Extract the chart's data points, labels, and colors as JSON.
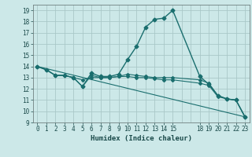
{
  "xlabel": "Humidex (Indice chaleur)",
  "ylabel": "",
  "xlim": [
    -0.5,
    23.5
  ],
  "ylim": [
    9,
    19.5
  ],
  "xticks": [
    0,
    1,
    2,
    3,
    4,
    5,
    6,
    7,
    8,
    9,
    10,
    11,
    12,
    13,
    14,
    15,
    18,
    19,
    20,
    21,
    22,
    23
  ],
  "yticks": [
    9,
    10,
    11,
    12,
    13,
    14,
    15,
    16,
    17,
    18,
    19
  ],
  "bg_color": "#cce8e8",
  "grid_color": "#aac8c8",
  "line_color": "#1a6e6e",
  "lines": [
    {
      "x": [
        0,
        1,
        2,
        3,
        4,
        5,
        6,
        7,
        8,
        9,
        10,
        11,
        12,
        13,
        14,
        15,
        18,
        19,
        20,
        21,
        22,
        23
      ],
      "y": [
        14,
        13.7,
        13.2,
        13.2,
        13.0,
        12.2,
        13.4,
        13.1,
        13.1,
        13.3,
        14.6,
        15.8,
        17.5,
        18.2,
        18.3,
        19.0,
        13.1,
        12.4,
        11.4,
        11.1,
        11.0,
        9.5
      ]
    },
    {
      "x": [
        0,
        1,
        2,
        3,
        4,
        5,
        6,
        7,
        8,
        9,
        10,
        11,
        12,
        13,
        14,
        15,
        18,
        19,
        20,
        21,
        22,
        23
      ],
      "y": [
        14,
        13.7,
        13.2,
        13.2,
        13.0,
        12.2,
        13.2,
        13.0,
        13.0,
        13.1,
        13.3,
        13.2,
        13.1,
        13.0,
        13.0,
        13.0,
        12.8,
        12.5,
        11.4,
        11.1,
        11.0,
        9.5
      ]
    },
    {
      "x": [
        0,
        1,
        2,
        3,
        4,
        5,
        6,
        7,
        8,
        9,
        10,
        11,
        12,
        13,
        14,
        15,
        18,
        19,
        20,
        21,
        22,
        23
      ],
      "y": [
        14,
        13.7,
        13.2,
        13.2,
        13.0,
        12.8,
        13.0,
        13.0,
        13.0,
        13.1,
        13.1,
        13.0,
        13.0,
        12.9,
        12.8,
        12.8,
        12.5,
        12.3,
        11.3,
        11.1,
        11.0,
        9.5
      ]
    },
    {
      "x": [
        0,
        23
      ],
      "y": [
        14,
        9.5
      ]
    }
  ]
}
